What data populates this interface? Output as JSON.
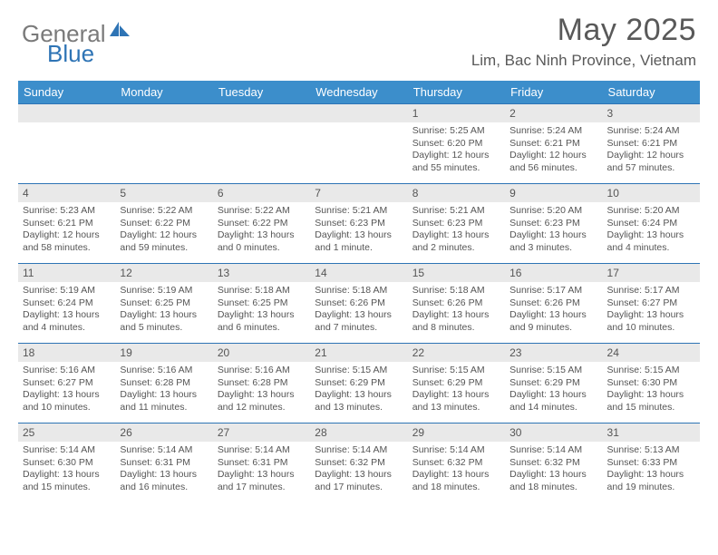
{
  "logo": {
    "word1": "General",
    "word2": "Blue"
  },
  "title": {
    "month": "May 2025",
    "location": "Lim, Bac Ninh Province, Vietnam"
  },
  "colors": {
    "header_bg": "#3c8ecb",
    "border": "#2e74b5",
    "day_head_bg": "#e9e9e9",
    "text": "#555555"
  },
  "weekdays": [
    "Sunday",
    "Monday",
    "Tuesday",
    "Wednesday",
    "Thursday",
    "Friday",
    "Saturday"
  ],
  "leading_blanks": 4,
  "days": [
    {
      "n": "1",
      "sr": "5:25 AM",
      "ss": "6:20 PM",
      "dl": "12 hours and 55 minutes."
    },
    {
      "n": "2",
      "sr": "5:24 AM",
      "ss": "6:21 PM",
      "dl": "12 hours and 56 minutes."
    },
    {
      "n": "3",
      "sr": "5:24 AM",
      "ss": "6:21 PM",
      "dl": "12 hours and 57 minutes."
    },
    {
      "n": "4",
      "sr": "5:23 AM",
      "ss": "6:21 PM",
      "dl": "12 hours and 58 minutes."
    },
    {
      "n": "5",
      "sr": "5:22 AM",
      "ss": "6:22 PM",
      "dl": "12 hours and 59 minutes."
    },
    {
      "n": "6",
      "sr": "5:22 AM",
      "ss": "6:22 PM",
      "dl": "13 hours and 0 minutes."
    },
    {
      "n": "7",
      "sr": "5:21 AM",
      "ss": "6:23 PM",
      "dl": "13 hours and 1 minute."
    },
    {
      "n": "8",
      "sr": "5:21 AM",
      "ss": "6:23 PM",
      "dl": "13 hours and 2 minutes."
    },
    {
      "n": "9",
      "sr": "5:20 AM",
      "ss": "6:23 PM",
      "dl": "13 hours and 3 minutes."
    },
    {
      "n": "10",
      "sr": "5:20 AM",
      "ss": "6:24 PM",
      "dl": "13 hours and 4 minutes."
    },
    {
      "n": "11",
      "sr": "5:19 AM",
      "ss": "6:24 PM",
      "dl": "13 hours and 4 minutes."
    },
    {
      "n": "12",
      "sr": "5:19 AM",
      "ss": "6:25 PM",
      "dl": "13 hours and 5 minutes."
    },
    {
      "n": "13",
      "sr": "5:18 AM",
      "ss": "6:25 PM",
      "dl": "13 hours and 6 minutes."
    },
    {
      "n": "14",
      "sr": "5:18 AM",
      "ss": "6:26 PM",
      "dl": "13 hours and 7 minutes."
    },
    {
      "n": "15",
      "sr": "5:18 AM",
      "ss": "6:26 PM",
      "dl": "13 hours and 8 minutes."
    },
    {
      "n": "16",
      "sr": "5:17 AM",
      "ss": "6:26 PM",
      "dl": "13 hours and 9 minutes."
    },
    {
      "n": "17",
      "sr": "5:17 AM",
      "ss": "6:27 PM",
      "dl": "13 hours and 10 minutes."
    },
    {
      "n": "18",
      "sr": "5:16 AM",
      "ss": "6:27 PM",
      "dl": "13 hours and 10 minutes."
    },
    {
      "n": "19",
      "sr": "5:16 AM",
      "ss": "6:28 PM",
      "dl": "13 hours and 11 minutes."
    },
    {
      "n": "20",
      "sr": "5:16 AM",
      "ss": "6:28 PM",
      "dl": "13 hours and 12 minutes."
    },
    {
      "n": "21",
      "sr": "5:15 AM",
      "ss": "6:29 PM",
      "dl": "13 hours and 13 minutes."
    },
    {
      "n": "22",
      "sr": "5:15 AM",
      "ss": "6:29 PM",
      "dl": "13 hours and 13 minutes."
    },
    {
      "n": "23",
      "sr": "5:15 AM",
      "ss": "6:29 PM",
      "dl": "13 hours and 14 minutes."
    },
    {
      "n": "24",
      "sr": "5:15 AM",
      "ss": "6:30 PM",
      "dl": "13 hours and 15 minutes."
    },
    {
      "n": "25",
      "sr": "5:14 AM",
      "ss": "6:30 PM",
      "dl": "13 hours and 15 minutes."
    },
    {
      "n": "26",
      "sr": "5:14 AM",
      "ss": "6:31 PM",
      "dl": "13 hours and 16 minutes."
    },
    {
      "n": "27",
      "sr": "5:14 AM",
      "ss": "6:31 PM",
      "dl": "13 hours and 17 minutes."
    },
    {
      "n": "28",
      "sr": "5:14 AM",
      "ss": "6:32 PM",
      "dl": "13 hours and 17 minutes."
    },
    {
      "n": "29",
      "sr": "5:14 AM",
      "ss": "6:32 PM",
      "dl": "13 hours and 18 minutes."
    },
    {
      "n": "30",
      "sr": "5:14 AM",
      "ss": "6:32 PM",
      "dl": "13 hours and 18 minutes."
    },
    {
      "n": "31",
      "sr": "5:13 AM",
      "ss": "6:33 PM",
      "dl": "13 hours and 19 minutes."
    }
  ],
  "labels": {
    "sunrise": "Sunrise:",
    "sunset": "Sunset:",
    "daylight": "Daylight:"
  }
}
